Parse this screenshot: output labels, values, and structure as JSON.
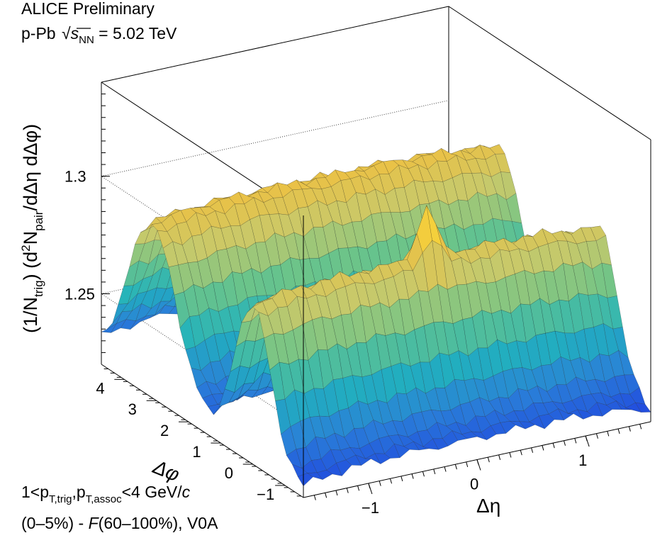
{
  "header": {
    "line1": "ALICE Preliminary",
    "line2_prefix": "p-Pb ",
    "line2_var": "s",
    "line2_sub": "NN",
    "line2_suffix": " = 5.02 TeV"
  },
  "footer": {
    "cut_line": {
      "p1": "1<p",
      "s1": "T,trig",
      "p2": ",p",
      "s2": "T,assoc",
      "p3": "<4 GeV/",
      "unit_c": "c"
    },
    "class_line": {
      "p1": "(0–5%) - ",
      "func": "F",
      "p2": "(60–100%), V0A"
    }
  },
  "chart_data": {
    "type": "surface",
    "title": "",
    "zlabel": {
      "a": "(1/N",
      "a_sub": "trig",
      "b": ") (d",
      "b_sup": "2",
      "c": "N",
      "c_sub": "pair",
      "d": "/dΔη dΔφ)"
    },
    "xlabel": "Δη",
    "ylabel": "Δφ",
    "xlim": [
      -1.6,
      1.6
    ],
    "ylim": [
      -1.5708,
      4.7124
    ],
    "zlim": [
      1.22,
      1.34
    ],
    "x_ticks": [
      "−1",
      "0",
      "1"
    ],
    "x_tick_values": [
      -1,
      0,
      1
    ],
    "y_ticks": [
      "−1",
      "0",
      "1",
      "2",
      "3",
      "4"
    ],
    "y_tick_values": [
      -1,
      0,
      1,
      2,
      3,
      4
    ],
    "z_ticks": [
      "1.25",
      "1.3"
    ],
    "z_tick_values": [
      1.25,
      1.3
    ],
    "grid": true,
    "colormap": [
      "#1f3fe0",
      "#2a80d8",
      "#21b2bd",
      "#6cc489",
      "#c8c96a",
      "#f0c040",
      "#ffff30"
    ],
    "model": {
      "baseline": 1.228,
      "near_side_peak_deta": 0,
      "near_side_peak_dphi": 0,
      "near_side_peak_height": 1.314,
      "near_ridge_height": 1.292,
      "away_ridge_height": 1.298,
      "ridge_width_dphi": 0.55
    }
  }
}
